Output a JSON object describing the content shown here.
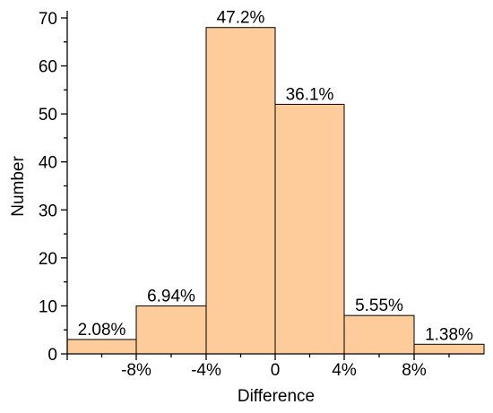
{
  "chart_data": {
    "type": "bar",
    "title": "",
    "xlabel": "Difference",
    "ylabel": "Number",
    "ylim": [
      0,
      70
    ],
    "yticks": [
      "0",
      "10",
      "20",
      "30",
      "40",
      "50",
      "60",
      "70"
    ],
    "xticks": [
      "-8%",
      "-4%",
      "0",
      "4%",
      "8%"
    ],
    "bar_color": "#fdcc9a",
    "bins": [
      {
        "range": "< -8%",
        "value": 3,
        "label": "2.08%"
      },
      {
        "range": "-8% to -4%",
        "value": 10,
        "label": "6.94%"
      },
      {
        "range": "-4% to 0",
        "value": 68,
        "label": "47.2%"
      },
      {
        "range": "0 to 4%",
        "value": 52,
        "label": "36.1%"
      },
      {
        "range": "4% to 8%",
        "value": 8,
        "label": "5.55%"
      },
      {
        "range": "> 8%",
        "value": 2,
        "label": "1.38%"
      }
    ]
  }
}
